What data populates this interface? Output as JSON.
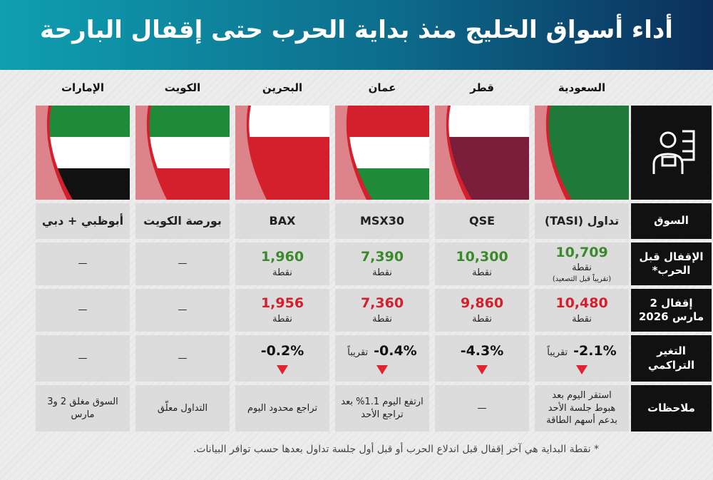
{
  "title": "أداء أسواق الخليج منذ بداية الحرب حتى إقفال البارحة",
  "countries": [
    "السعودية",
    "قطر",
    "عمان",
    "البحرين",
    "الكويت",
    "الإمارات"
  ],
  "rows": [
    {
      "header": "السوق",
      "cells": [
        "تداول (TASI)",
        "QSE",
        "MSX30",
        "BAX",
        "بورصة الكويت",
        "أبوظبي + دبي"
      ]
    },
    {
      "header": "الإقفال قبل الحرب*",
      "color": "#3a8a2c",
      "cells": [
        {
          "value": "10,709",
          "unit": "نقطة",
          "note": "(تقريباً قبل التصعيد)"
        },
        {
          "value": "10,300",
          "unit": "نقطة"
        },
        {
          "value": "7,390",
          "unit": "نقطة"
        },
        {
          "value": "1,960",
          "unit": "نقطة"
        },
        "—",
        "—"
      ]
    },
    {
      "header": "إقفال 2 مارس 2026",
      "color": "#d3202c",
      "cells": [
        {
          "value": "10,480",
          "unit": "نقطة"
        },
        {
          "value": "9,860",
          "unit": "نقطة"
        },
        {
          "value": "7,360",
          "unit": "نقطة"
        },
        {
          "value": "1,956",
          "unit": "نقطة"
        },
        "—",
        "—"
      ]
    },
    {
      "header": "التغير التراكمي",
      "trend": "down",
      "cells": [
        {
          "value": "-2.1%",
          "qualifier": "تقريباً"
        },
        {
          "value": "-4.3%"
        },
        {
          "value": "-0.4%",
          "qualifier": "تقريباً"
        },
        {
          "value": "-0.2%"
        },
        "—",
        "—"
      ]
    },
    {
      "header": "ملاحظات",
      "cells": [
        "استقر اليوم بعد هبوط جلسة الأحد بدعم أسهم الطاقة",
        "—",
        "ارتفع اليوم 1.1% بعد تراجع الأحد",
        "تراجع محدود اليوم",
        "التداول معلّق",
        "السوق مغلق 2 و3 مارس"
      ]
    }
  ],
  "footnote": "* نقطة البداية هي آخر إقفال قبل اندلاع الحرب أو قبل أول جلسة تداول بعدها حسب توافر البيانات."
}
